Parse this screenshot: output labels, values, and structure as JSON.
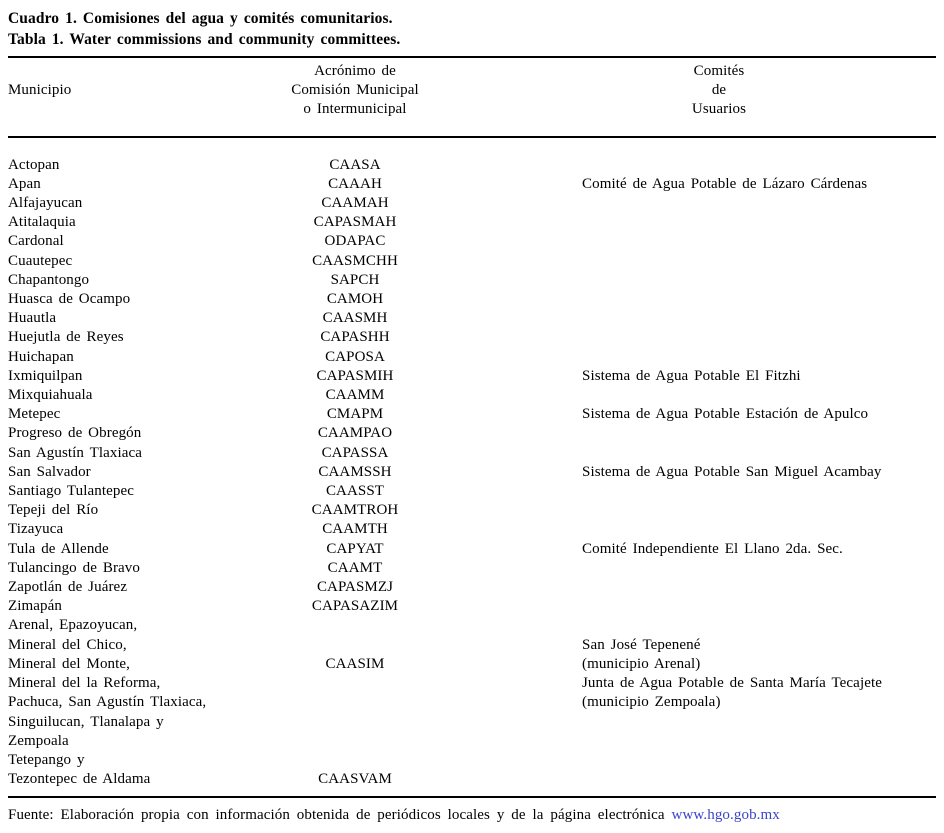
{
  "title": {
    "es": "Cuadro 1. Comisiones del agua y comités comunitarios.",
    "en": "Tabla 1. Water commissions and community committees."
  },
  "header": {
    "col1": "Municipio",
    "col2_lines": [
      "Acrónimo de",
      "Comisión Municipal",
      "o Intermunicipal"
    ],
    "col3_lines": [
      "Comités",
      "de",
      "Usuarios"
    ]
  },
  "rows": [
    {
      "municipio": "Actopan",
      "acronimo": "CAASA",
      "comite": ""
    },
    {
      "municipio": "Apan",
      "acronimo": "CAAAH",
      "comite": "Comité de Agua Potable de Lázaro Cárdenas"
    },
    {
      "municipio": "Alfajayucan",
      "acronimo": "CAAMAH",
      "comite": ""
    },
    {
      "municipio": "Atitalaquia",
      "acronimo": "CAPASMAH",
      "comite": ""
    },
    {
      "municipio": "Cardonal",
      "acronimo": "ODAPAC",
      "comite": ""
    },
    {
      "municipio": "Cuautepec",
      "acronimo": "CAASMCHH",
      "comite": ""
    },
    {
      "municipio": "Chapantongo",
      "acronimo": "SAPCH",
      "comite": ""
    },
    {
      "municipio": "Huasca de Ocampo",
      "acronimo": "CAMOH",
      "comite": ""
    },
    {
      "municipio": "Huautla",
      "acronimo": "CAASMH",
      "comite": ""
    },
    {
      "municipio": "Huejutla de Reyes",
      "acronimo": "CAPASHH",
      "comite": ""
    },
    {
      "municipio": "Huichapan",
      "acronimo": "CAPOSA",
      "comite": ""
    },
    {
      "municipio": "Ixmiquilpan",
      "acronimo": "CAPASMIH",
      "comite": "Sistema de Agua Potable El Fitzhi"
    },
    {
      "municipio": "Mixquiahuala",
      "acronimo": "CAAMM",
      "comite": ""
    },
    {
      "municipio": "Metepec",
      "acronimo": "CMAPM",
      "comite": "Sistema de Agua Potable Estación de Apulco"
    },
    {
      "municipio": "Progreso de Obregón",
      "acronimo": "CAAMPAO",
      "comite": ""
    },
    {
      "municipio": "San Agustín Tlaxiaca",
      "acronimo": "CAPASSA",
      "comite": ""
    },
    {
      "municipio": "San Salvador",
      "acronimo": "CAAMSSH",
      "comite": "Sistema de Agua Potable San Miguel Acambay"
    },
    {
      "municipio": "Santiago Tulantepec",
      "acronimo": "CAASST",
      "comite": ""
    },
    {
      "municipio": "Tepeji del Río",
      "acronimo": "CAAMTROH",
      "comite": ""
    },
    {
      "municipio": "Tizayuca",
      "acronimo": "CAAMTH",
      "comite": ""
    },
    {
      "municipio": "Tula de Allende",
      "acronimo": "CAPYAT",
      "comite": "Comité Independiente El Llano 2da. Sec."
    },
    {
      "municipio": "Tulancingo de Bravo",
      "acronimo": "CAAMT",
      "comite": ""
    },
    {
      "municipio": "Zapotlán de Juárez",
      "acronimo": "CAPASMZJ",
      "comite": ""
    },
    {
      "municipio": "Zimapán",
      "acronimo": "CAPASAZIM",
      "comite": ""
    },
    {
      "municipio": "Arenal, Epazoyucan,",
      "acronimo": "",
      "comite": ""
    },
    {
      "municipio": "Mineral del Chico,",
      "acronimo": "",
      "comite": "San José Tepenené"
    },
    {
      "municipio": "Mineral del Monte,",
      "acronimo": "CAASIM",
      "comite": "(municipio Arenal)"
    },
    {
      "municipio": "Mineral del la Reforma,",
      "acronimo": "",
      "comite": "Junta de Agua Potable de Santa María Tecajete"
    },
    {
      "municipio": "Pachuca, San Agustín Tlaxiaca,",
      "acronimo": "",
      "comite": "(municipio Zempoala)"
    },
    {
      "municipio": "Singuilucan, Tlanalapa y",
      "acronimo": "",
      "comite": ""
    },
    {
      "municipio": "Zempoala",
      "acronimo": "",
      "comite": ""
    },
    {
      "municipio": "Tetepango y",
      "acronimo": "",
      "comite": ""
    },
    {
      "municipio": "Tezontepec de Aldama",
      "acronimo": "CAASVAM",
      "comite": ""
    }
  ],
  "footer": {
    "text": "Fuente: Elaboración propia con información obtenida de periódicos locales y de la página electrónica",
    "link": "www.hgo.gob.mx"
  },
  "colors": {
    "text": "#000000",
    "background": "#ffffff",
    "link": "#3a46c8"
  }
}
